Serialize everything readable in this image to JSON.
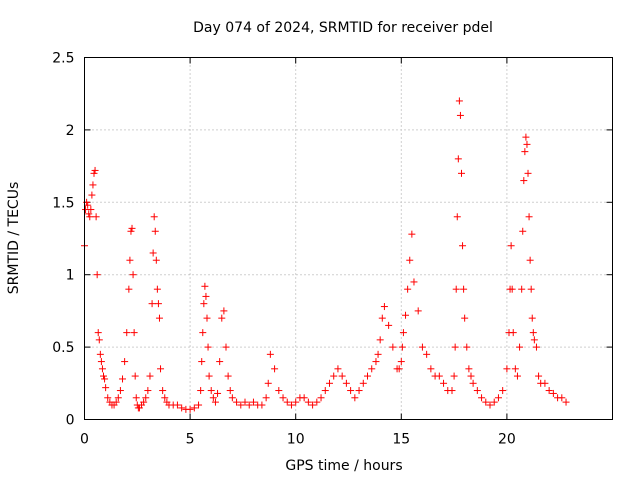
{
  "chart_data": {
    "type": "scatter",
    "title": "Day 074 of 2024, SRMTID for receiver pdel",
    "xlabel": "GPS time / hours",
    "ylabel": "SRMTID / TECUs",
    "xlim": [
      0,
      25
    ],
    "ylim": [
      0,
      2.5
    ],
    "x_ticks": [
      0,
      5,
      10,
      15,
      20
    ],
    "x_tick_labels": [
      "0",
      "5",
      "10",
      "15",
      "20"
    ],
    "y_ticks": [
      0,
      0.5,
      1,
      1.5,
      2,
      2.5
    ],
    "y_tick_labels": [
      "0",
      "0.5",
      "1",
      "1.5",
      "2",
      "2.5"
    ],
    "grid": true,
    "marker": "plus",
    "color": "#ff0000",
    "series": [
      {
        "name": "SRMTID",
        "x": [
          0.0,
          0.05,
          0.1,
          0.15,
          0.2,
          0.25,
          0.3,
          0.35,
          0.4,
          0.45,
          0.5,
          0.55,
          0.6,
          0.65,
          0.7,
          0.75,
          0.8,
          0.85,
          0.9,
          0.95,
          1.0,
          1.1,
          1.2,
          1.3,
          1.4,
          1.5,
          1.6,
          1.7,
          1.8,
          1.9,
          2.0,
          2.1,
          2.15,
          2.2,
          2.25,
          2.3,
          2.35,
          2.4,
          2.45,
          2.5,
          2.55,
          2.6,
          2.7,
          2.8,
          2.9,
          3.0,
          3.1,
          3.2,
          3.25,
          3.3,
          3.35,
          3.4,
          3.45,
          3.5,
          3.55,
          3.6,
          3.7,
          3.8,
          3.9,
          4.0,
          4.2,
          4.4,
          4.6,
          4.8,
          5.0,
          5.2,
          5.4,
          5.5,
          5.55,
          5.6,
          5.65,
          5.7,
          5.75,
          5.8,
          5.85,
          5.9,
          6.0,
          6.1,
          6.2,
          6.3,
          6.4,
          6.5,
          6.6,
          6.7,
          6.8,
          6.9,
          7.0,
          7.2,
          7.4,
          7.6,
          7.8,
          8.0,
          8.2,
          8.4,
          8.6,
          8.7,
          8.8,
          9.0,
          9.2,
          9.4,
          9.6,
          9.8,
          10.0,
          10.2,
          10.4,
          10.6,
          10.8,
          11.0,
          11.2,
          11.4,
          11.6,
          11.8,
          12.0,
          12.2,
          12.4,
          12.6,
          12.8,
          13.0,
          13.2,
          13.4,
          13.6,
          13.8,
          13.9,
          14.0,
          14.1,
          14.2,
          14.4,
          14.6,
          14.8,
          14.9,
          15.0,
          15.05,
          15.1,
          15.2,
          15.3,
          15.4,
          15.5,
          15.6,
          15.8,
          16.0,
          16.2,
          16.4,
          16.6,
          16.8,
          17.0,
          17.2,
          17.4,
          17.5,
          17.55,
          17.6,
          17.65,
          17.7,
          17.75,
          17.8,
          17.85,
          17.9,
          17.95,
          18.0,
          18.1,
          18.2,
          18.3,
          18.4,
          18.6,
          18.8,
          19.0,
          19.2,
          19.4,
          19.6,
          19.8,
          20.0,
          20.1,
          20.15,
          20.2,
          20.25,
          20.3,
          20.4,
          20.5,
          20.6,
          20.7,
          20.75,
          20.8,
          20.85,
          20.9,
          20.95,
          21.0,
          21.05,
          21.1,
          21.15,
          21.2,
          21.25,
          21.3,
          21.4,
          21.5,
          21.6,
          21.8,
          22.0,
          22.2,
          22.4,
          22.6,
          22.8
        ],
        "y": [
          1.2,
          1.45,
          1.5,
          1.48,
          1.42,
          1.4,
          1.45,
          1.55,
          1.62,
          1.7,
          1.72,
          1.4,
          1.0,
          0.6,
          0.55,
          0.45,
          0.4,
          0.35,
          0.3,
          0.28,
          0.22,
          0.15,
          0.12,
          0.1,
          0.1,
          0.12,
          0.15,
          0.2,
          0.28,
          0.4,
          0.6,
          0.9,
          1.1,
          1.3,
          1.32,
          1.0,
          0.6,
          0.3,
          0.15,
          0.1,
          0.08,
          0.08,
          0.1,
          0.12,
          0.15,
          0.2,
          0.3,
          0.8,
          1.15,
          1.4,
          1.3,
          1.1,
          0.9,
          0.8,
          0.7,
          0.35,
          0.2,
          0.15,
          0.12,
          0.1,
          0.1,
          0.1,
          0.08,
          0.07,
          0.07,
          0.08,
          0.1,
          0.2,
          0.4,
          0.6,
          0.8,
          0.92,
          0.85,
          0.7,
          0.5,
          0.3,
          0.2,
          0.15,
          0.12,
          0.18,
          0.4,
          0.7,
          0.75,
          0.5,
          0.3,
          0.2,
          0.15,
          0.12,
          0.1,
          0.12,
          0.1,
          0.12,
          0.1,
          0.1,
          0.15,
          0.25,
          0.45,
          0.35,
          0.2,
          0.15,
          0.12,
          0.1,
          0.12,
          0.15,
          0.15,
          0.12,
          0.1,
          0.12,
          0.15,
          0.2,
          0.25,
          0.3,
          0.35,
          0.3,
          0.25,
          0.2,
          0.15,
          0.2,
          0.25,
          0.3,
          0.35,
          0.4,
          0.45,
          0.55,
          0.7,
          0.78,
          0.65,
          0.5,
          0.35,
          0.35,
          0.4,
          0.5,
          0.6,
          0.72,
          0.9,
          1.1,
          1.28,
          0.95,
          0.75,
          0.5,
          0.45,
          0.35,
          0.3,
          0.3,
          0.25,
          0.2,
          0.2,
          0.3,
          0.5,
          0.9,
          1.4,
          1.8,
          2.2,
          2.1,
          1.7,
          1.2,
          0.9,
          0.7,
          0.5,
          0.35,
          0.3,
          0.25,
          0.2,
          0.15,
          0.12,
          0.1,
          0.12,
          0.15,
          0.2,
          0.35,
          0.6,
          0.9,
          1.2,
          0.9,
          0.6,
          0.35,
          0.3,
          0.5,
          0.9,
          1.3,
          1.65,
          1.85,
          1.95,
          1.9,
          1.7,
          1.4,
          1.1,
          0.9,
          0.7,
          0.6,
          0.55,
          0.5,
          0.3,
          0.25,
          0.25,
          0.2,
          0.18,
          0.15,
          0.15,
          0.12
        ]
      }
    ]
  }
}
